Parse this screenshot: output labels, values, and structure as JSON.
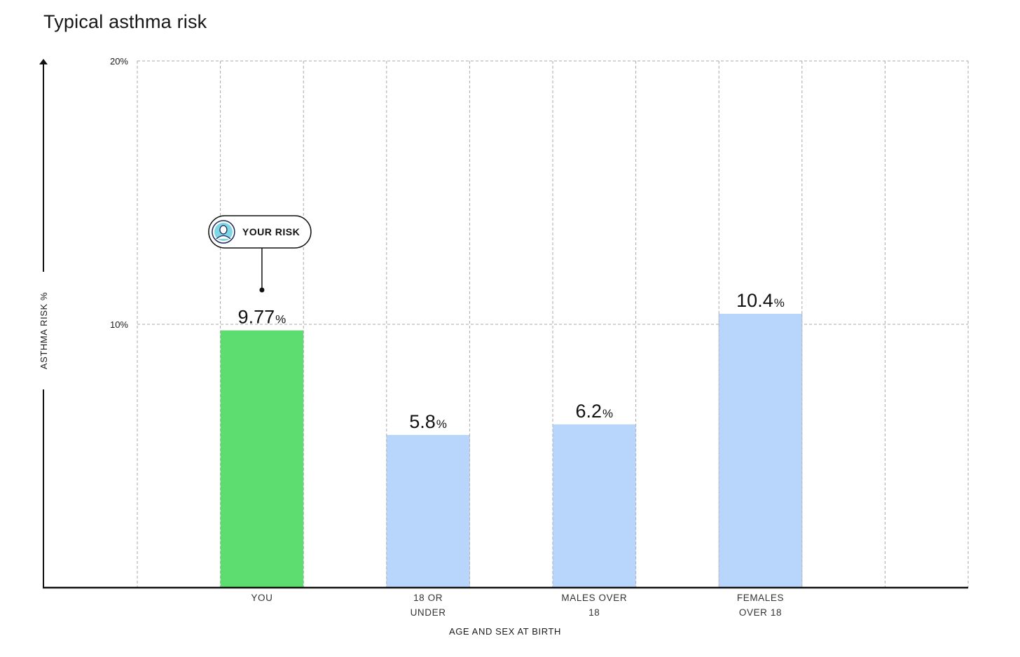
{
  "chart_data": {
    "type": "bar",
    "title": "Typical asthma risk",
    "xlabel": "AGE AND SEX AT BIRTH",
    "ylabel": "ASTHMA RISK %",
    "ylim": [
      0,
      20
    ],
    "yticks": [
      {
        "value": 10,
        "label": "10%"
      },
      {
        "value": 20,
        "label": "20%"
      }
    ],
    "grid": true,
    "value_unit": "%",
    "categories": [
      [
        "YOU"
      ],
      [
        "18 OR",
        "UNDER"
      ],
      [
        "MALES OVER",
        "18"
      ],
      [
        "FEMALES",
        "OVER 18"
      ]
    ],
    "values": [
      9.77,
      5.8,
      6.2,
      10.4
    ],
    "value_labels": [
      "9.77",
      "5.8",
      "6.2",
      "10.4"
    ],
    "bar_colors": [
      "#5ddc70",
      "#b8d5fc",
      "#b8d5fc",
      "#b8d5fc"
    ],
    "highlight": {
      "category_index": 0,
      "label": "YOUR RISK",
      "icon": "user-avatar-icon"
    }
  },
  "colors": {
    "highlight_bar": "#5ddc70",
    "bar": "#b8d5fc",
    "grid": "#a9a9a9",
    "axis": "#111111",
    "avatar_bg": "#7fd6e6",
    "avatar_stroke": "#1b2a5c"
  }
}
